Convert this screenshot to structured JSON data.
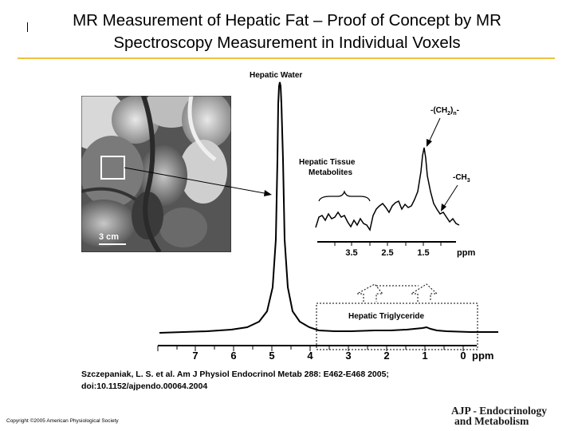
{
  "slide": {
    "title_line1": "MR Measurement of Hepatic Fat – Proof of Concept by MR",
    "title_line2": "Spectroscopy Measurement in Individual Voxels",
    "citation_line1": "Szczepaniak, L. S. et al. Am J Physiol Endocrinol Metab 288: E462-E468 2005;",
    "citation_line2": "doi:10.1152/ajpendo.00064.2004",
    "copyright": "Copyright ©2005 American Physiological Society",
    "journal_line1": "AJP - Endocrinology",
    "journal_line2": "and Metabolism",
    "accent_color": "#f0c040"
  },
  "figure": {
    "mri": {
      "scale_label": "3 cm"
    },
    "labels": {
      "hepatic_water": "Hepatic Water",
      "tissue_metabolites_line1": "Hepatic Tissue",
      "tissue_metabolites_line2": "Metabolites",
      "ch2_prefix": "-(CH",
      "ch2_sub1": "2",
      "ch2_mid": ")",
      "ch2_sub2": "n",
      "ch2_suffix": "-",
      "ch3_prefix": "-CH",
      "ch3_sub": "3",
      "triglyceride": "Hepatic Triglyceride"
    },
    "main_axis": {
      "ticks": [
        "7",
        "6",
        "5",
        "4",
        "3",
        "2",
        "1",
        "0"
      ],
      "unit": "ppm"
    },
    "inset_axis": {
      "ticks": [
        "3.5",
        "2.5",
        "1.5"
      ],
      "unit": "ppm"
    }
  }
}
